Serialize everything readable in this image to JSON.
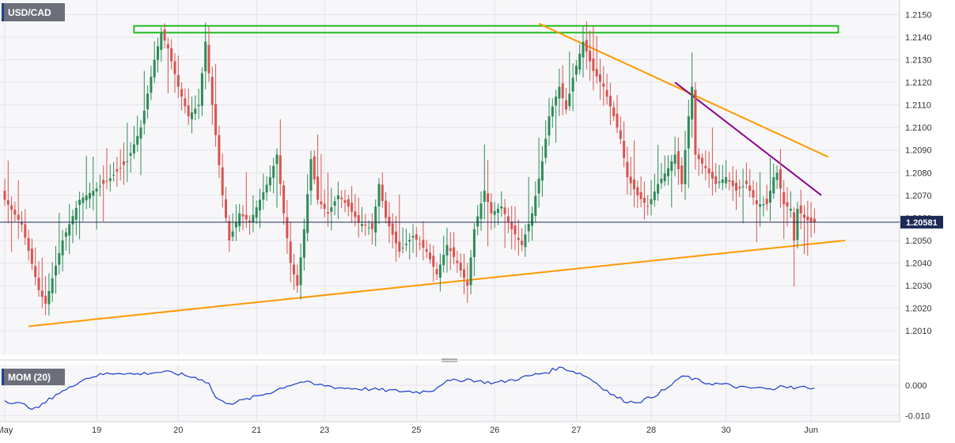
{
  "chart_data": [
    {
      "type": "candlestick",
      "title": "USD/CAD",
      "period": "15-minute (approx.)",
      "ylim": [
        1.2002,
        1.2154
      ],
      "y_ticks": [
        "1.2150",
        "1.2140",
        "1.2130",
        "1.2120",
        "1.2110",
        "1.2100",
        "1.2090",
        "1.2080",
        "1.2070",
        "1.2060",
        "1.2050",
        "1.2040",
        "1.2030",
        "1.2020",
        "1.2010"
      ],
      "x_labels": [
        {
          "text": "May",
          "index": 0
        },
        {
          "text": "19",
          "index": 27
        },
        {
          "text": "20",
          "index": 51
        },
        {
          "text": "21",
          "index": 74
        },
        {
          "text": "23",
          "index": 94
        },
        {
          "text": "25",
          "index": 121
        },
        {
          "text": "26",
          "index": 144
        },
        {
          "text": "27",
          "index": 168
        },
        {
          "text": "28",
          "index": 190
        },
        {
          "text": "30",
          "index": 212
        },
        {
          "text": "Jun",
          "index": 237
        }
      ],
      "price_label": "1.20581",
      "last_price": 1.20581,
      "colors": {
        "up": "#2e8b57",
        "down": "#d9534f",
        "price_line": "#1c2a55"
      },
      "candle_count": 239,
      "keypoints": [
        [
          0,
          1.2068
        ],
        [
          5,
          1.2057
        ],
        [
          10,
          1.2028
        ],
        [
          12,
          1.2022
        ],
        [
          17,
          1.205
        ],
        [
          22,
          1.2068
        ],
        [
          26,
          1.2072
        ],
        [
          30,
          1.2076
        ],
        [
          36,
          1.2085
        ],
        [
          40,
          1.21
        ],
        [
          44,
          1.213
        ],
        [
          46,
          1.2142
        ],
        [
          48,
          1.2135
        ],
        [
          51,
          1.2118
        ],
        [
          54,
          1.2105
        ],
        [
          57,
          1.211
        ],
        [
          59,
          1.2138
        ],
        [
          61,
          1.211
        ],
        [
          64,
          1.207
        ],
        [
          66,
          1.205
        ],
        [
          69,
          1.2062
        ],
        [
          72,
          1.2058
        ],
        [
          75,
          1.2068
        ],
        [
          78,
          1.2078
        ],
        [
          80,
          1.2088
        ],
        [
          82,
          1.2062
        ],
        [
          84,
          1.204
        ],
        [
          86,
          1.203
        ],
        [
          88,
          1.2055
        ],
        [
          90,
          1.2086
        ],
        [
          92,
          1.2068
        ],
        [
          95,
          1.2062
        ],
        [
          98,
          1.207
        ],
        [
          101,
          1.2065
        ],
        [
          104,
          1.2058
        ],
        [
          108,
          1.2055
        ],
        [
          110,
          1.2075
        ],
        [
          112,
          1.206
        ],
        [
          116,
          1.2045
        ],
        [
          120,
          1.2052
        ],
        [
          124,
          1.2045
        ],
        [
          127,
          1.2035
        ],
        [
          130,
          1.2048
        ],
        [
          133,
          1.204
        ],
        [
          136,
          1.203
        ],
        [
          138,
          1.2055
        ],
        [
          141,
          1.2072
        ],
        [
          143,
          1.2062
        ],
        [
          146,
          1.2065
        ],
        [
          149,
          1.2055
        ],
        [
          152,
          1.2048
        ],
        [
          155,
          1.2062
        ],
        [
          158,
          1.2085
        ],
        [
          160,
          1.2105
        ],
        [
          163,
          1.2118
        ],
        [
          165,
          1.2108
        ],
        [
          167,
          1.2122
        ],
        [
          170,
          1.2138
        ],
        [
          173,
          1.2125
        ],
        [
          176,
          1.2118
        ],
        [
          179,
          1.2105
        ],
        [
          181,
          1.2095
        ],
        [
          183,
          1.2078
        ],
        [
          186,
          1.207
        ],
        [
          189,
          1.2065
        ],
        [
          192,
          1.2075
        ],
        [
          195,
          1.2082
        ],
        [
          197,
          1.2088
        ],
        [
          199,
          1.2075
        ],
        [
          201,
          1.2105
        ],
        [
          202,
          1.2118
        ],
        [
          203,
          1.2088
        ],
        [
          206,
          1.2082
        ],
        [
          209,
          1.2075
        ],
        [
          212,
          1.2078
        ],
        [
          215,
          1.2072
        ],
        [
          218,
          1.2075
        ],
        [
          221,
          1.2066
        ],
        [
          224,
          1.2066
        ],
        [
          226,
          1.2078
        ],
        [
          227,
          1.208
        ],
        [
          229,
          1.2066
        ],
        [
          231,
          1.2064
        ],
        [
          232,
          1.205
        ],
        [
          233,
          1.2064
        ],
        [
          235,
          1.206
        ],
        [
          237,
          1.2058
        ],
        [
          238,
          1.20581
        ]
      ],
      "annotations": [
        {
          "kind": "rectangle",
          "label": "resistance zone",
          "color": "#22bb22",
          "y_top": 1.2145,
          "y_bottom": 1.2142,
          "x_start": 38,
          "x_end": 245
        },
        {
          "kind": "trendline",
          "label": "rising support",
          "color": "#ff9900",
          "from": [
            7,
            1.2012
          ],
          "to": [
            247,
            1.205
          ]
        },
        {
          "kind": "trendline",
          "label": "falling resistance",
          "color": "#ff9900",
          "from": [
            157,
            1.2146
          ],
          "to": [
            242,
            1.2087
          ]
        },
        {
          "kind": "trendline",
          "label": "falling resistance",
          "color": "#8b008b",
          "from": [
            197,
            1.212
          ],
          "to": [
            240,
            1.207
          ]
        }
      ]
    },
    {
      "type": "line",
      "title": "MOM (20)",
      "ylim": [
        -0.012,
        0.0068
      ],
      "y_ticks": [
        "0.000",
        "-0.010"
      ],
      "series": [
        {
          "color": "#1a3acc",
          "keypoints": [
            [
              0,
              -0.005
            ],
            [
              4,
              -0.006
            ],
            [
              7,
              -0.007
            ],
            [
              9,
              -0.0078
            ],
            [
              11,
              -0.0065
            ],
            [
              15,
              -0.003
            ],
            [
              19,
              -0.001
            ],
            [
              22,
              0.0015
            ],
            [
              26,
              0.003
            ],
            [
              30,
              0.0038
            ],
            [
              34,
              0.0042
            ],
            [
              38,
              0.0036
            ],
            [
              42,
              0.004
            ],
            [
              46,
              0.0044
            ],
            [
              50,
              0.004
            ],
            [
              54,
              0.003
            ],
            [
              58,
              0.002
            ],
            [
              60,
              0.0005
            ],
            [
              62,
              -0.004
            ],
            [
              64,
              -0.0055
            ],
            [
              67,
              -0.0058
            ],
            [
              70,
              -0.005
            ],
            [
              73,
              -0.004
            ],
            [
              76,
              -0.003
            ],
            [
              79,
              -0.002
            ],
            [
              82,
              -0.0005
            ],
            [
              85,
              0.0005
            ],
            [
              88,
              0.0012
            ],
            [
              91,
              0.0002
            ],
            [
              94,
              0.0
            ],
            [
              98,
              -0.0008
            ],
            [
              102,
              -0.001
            ],
            [
              106,
              -0.0012
            ],
            [
              110,
              -0.0015
            ],
            [
              114,
              -0.0018
            ],
            [
              118,
              -0.002
            ],
            [
              122,
              -0.0022
            ],
            [
              126,
              -0.0015
            ],
            [
              129,
              0.001
            ],
            [
              132,
              0.0015
            ],
            [
              136,
              0.002
            ],
            [
              140,
              0.0012
            ],
            [
              144,
              0.0008
            ],
            [
              148,
              0.0015
            ],
            [
              152,
              0.0025
            ],
            [
              156,
              0.0035
            ],
            [
              160,
              0.0045
            ],
            [
              162,
              0.0055
            ],
            [
              164,
              0.0058
            ],
            [
              166,
              0.005
            ],
            [
              170,
              0.0035
            ],
            [
              173,
              0.0015
            ],
            [
              176,
              -0.001
            ],
            [
              179,
              -0.0035
            ],
            [
              182,
              -0.005
            ],
            [
              184,
              -0.0055
            ],
            [
              187,
              -0.0052
            ],
            [
              190,
              -0.004
            ],
            [
              193,
              -0.002
            ],
            [
              195,
              -0.001
            ],
            [
              197,
              0.0015
            ],
            [
              200,
              0.003
            ],
            [
              203,
              0.0018
            ],
            [
              206,
              0.0008
            ],
            [
              209,
              0.0005
            ],
            [
              212,
              0.0002
            ],
            [
              215,
              -0.0005
            ],
            [
              218,
              -0.001
            ],
            [
              221,
              -0.0008
            ],
            [
              224,
              -0.0012
            ],
            [
              226,
              -0.0018
            ],
            [
              228,
              0.0005
            ],
            [
              230,
              -0.0005
            ],
            [
              232,
              -0.001
            ],
            [
              234,
              -0.0008
            ],
            [
              236,
              -0.0005
            ],
            [
              238,
              -0.0012
            ]
          ]
        }
      ]
    }
  ]
}
